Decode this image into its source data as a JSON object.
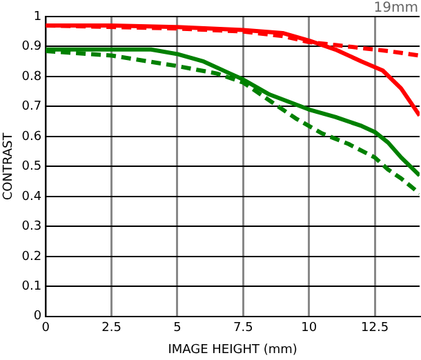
{
  "chart_data": {
    "type": "line",
    "xlabel": "IMAGE HEIGHT (mm)",
    "ylabel": "CONTRAST",
    "annotations": [
      "19mm"
    ],
    "xlim": [
      0,
      14.2
    ],
    "xticks": [
      0,
      {
        "value": 2.5,
        "label": "2.5"
      },
      5,
      {
        "value": 7.5,
        "label": "7.5"
      },
      10,
      {
        "value": 12.5,
        "label": "12.5"
      }
    ],
    "ylim": [
      0,
      1
    ],
    "yticks": [
      0,
      0.1,
      0.2,
      0.3,
      0.4,
      0.5,
      0.6,
      0.7,
      0.8,
      0.9,
      1
    ],
    "grid": true,
    "legend": false,
    "marker": "none",
    "series": [
      {
        "color": "#ff0000",
        "line_style": "solid",
        "x": [
          0,
          2.5,
          5,
          7.5,
          9,
          10,
          11,
          12,
          12.8,
          13.5,
          14.2
        ],
        "values": [
          0.97,
          0.97,
          0.965,
          0.955,
          0.945,
          0.92,
          0.89,
          0.85,
          0.82,
          0.76,
          0.67
        ]
      },
      {
        "color": "#ff0000",
        "line_style": "dashed",
        "x": [
          0,
          5,
          7.5,
          9,
          10,
          11,
          12,
          13,
          14.2
        ],
        "values": [
          0.97,
          0.96,
          0.95,
          0.935,
          0.915,
          0.905,
          0.895,
          0.885,
          0.87
        ]
      },
      {
        "color": "#008000",
        "line_style": "solid",
        "x": [
          0,
          2.5,
          4,
          5,
          6,
          7,
          7.5,
          8.5,
          10,
          11,
          12,
          12.5,
          13,
          13.5,
          14.2
        ],
        "values": [
          0.89,
          0.89,
          0.89,
          0.875,
          0.85,
          0.81,
          0.79,
          0.74,
          0.69,
          0.665,
          0.635,
          0.615,
          0.58,
          0.53,
          0.47
        ]
      },
      {
        "color": "#008000",
        "line_style": "dashed",
        "x": [
          0,
          2.5,
          5,
          6.5,
          7.5,
          8.5,
          9.5,
          10.5,
          11.5,
          12.5,
          13,
          13.5,
          14.2
        ],
        "values": [
          0.885,
          0.87,
          0.835,
          0.81,
          0.78,
          0.72,
          0.66,
          0.61,
          0.575,
          0.53,
          0.49,
          0.46,
          0.41
        ]
      }
    ]
  }
}
